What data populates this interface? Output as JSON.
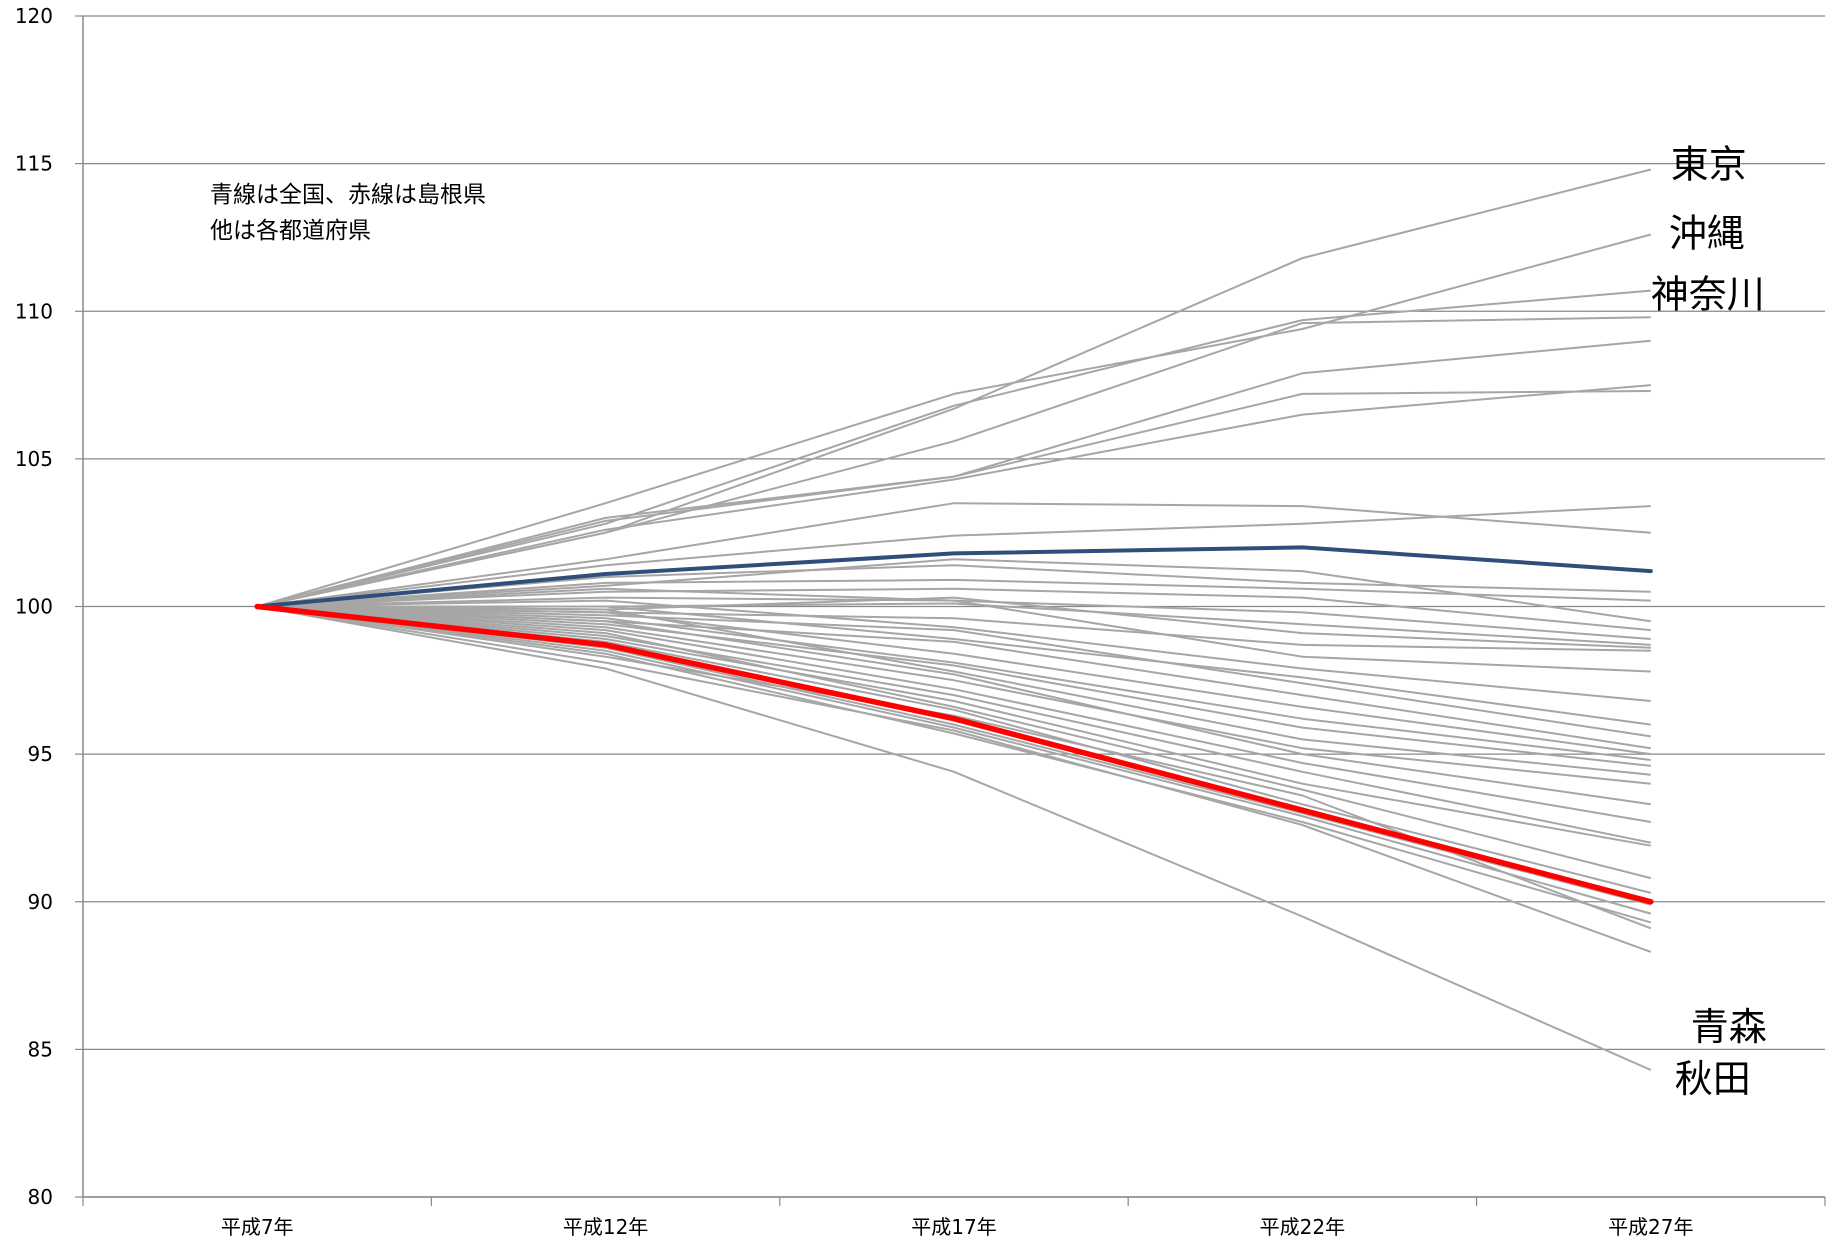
{
  "chart_data": {
    "type": "line",
    "title": "",
    "xlabel": "",
    "ylabel": "",
    "categories": [
      "平成7年",
      "平成12年",
      "平成17年",
      "平成22年",
      "平成27年"
    ],
    "ylim": [
      80,
      120
    ],
    "yticks": [
      80,
      85,
      90,
      95,
      100,
      105,
      110,
      115,
      120
    ],
    "grid": true,
    "notes": [
      "青線は全国、赤線は島根県",
      "他は各都道府県"
    ],
    "colors": {
      "prefecture": "#a6a6a6",
      "national": "#2e4f7a",
      "shimane": "#ff0000",
      "axis": "#888888",
      "grid": "#888888"
    },
    "highlight_series": [
      {
        "role": "national",
        "values": [
          100,
          101.1,
          101.8,
          102.0,
          101.2
        ]
      },
      {
        "role": "shimane",
        "values": [
          100,
          98.7,
          96.2,
          93.1,
          90.0
        ]
      }
    ],
    "labelled_series": [
      {
        "name": "東京",
        "values": [
          100,
          102.5,
          106.7,
          111.8,
          114.8
        ]
      },
      {
        "name": "沖縄",
        "values": [
          100,
          103.5,
          107.2,
          109.4,
          112.6
        ]
      },
      {
        "name": "神奈川",
        "values": [
          100,
          102.8,
          106.8,
          109.7,
          110.7
        ]
      },
      {
        "name": "青森",
        "values": [
          100,
          98.1,
          95.8,
          92.6,
          88.3
        ]
      },
      {
        "name": "秋田",
        "values": [
          100,
          97.9,
          94.4,
          89.5,
          84.3
        ]
      }
    ],
    "series": [
      {
        "values": [
          100,
          102.5,
          105.6,
          109.6,
          109.8
        ]
      },
      {
        "values": [
          100,
          102.9,
          104.4,
          107.9,
          109.0
        ]
      },
      {
        "values": [
          100,
          103.0,
          104.4,
          107.2,
          107.3
        ]
      },
      {
        "values": [
          100,
          102.6,
          104.3,
          106.5,
          107.5
        ]
      },
      {
        "values": [
          100,
          101.6,
          103.5,
          103.4,
          102.5
        ]
      },
      {
        "values": [
          100,
          101.4,
          102.4,
          102.8,
          103.4
        ]
      },
      {
        "values": [
          100,
          101.0,
          101.4,
          100.8,
          100.5
        ]
      },
      {
        "values": [
          100,
          100.8,
          100.9,
          100.6,
          100.2
        ]
      },
      {
        "values": [
          100,
          100.7,
          101.6,
          101.2,
          99.5
        ]
      },
      {
        "values": [
          100,
          100.5,
          100.6,
          100.3,
          99.2
        ]
      },
      {
        "values": [
          100,
          100.3,
          100.2,
          99.8,
          98.9
        ]
      },
      {
        "values": [
          100,
          100.0,
          100.1,
          99.4,
          98.7
        ]
      },
      {
        "values": [
          100,
          99.9,
          100.3,
          99.1,
          98.6
        ]
      },
      {
        "values": [
          100,
          99.8,
          99.6,
          98.7,
          98.5
        ]
      },
      {
        "values": [
          100,
          100.6,
          100.2,
          98.3,
          97.8
        ]
      },
      {
        "values": [
          100,
          100.2,
          99.3,
          97.9,
          96.8
        ]
      },
      {
        "values": [
          100,
          100.0,
          98.9,
          97.6,
          96.0
        ]
      },
      {
        "values": [
          100,
          99.7,
          99.2,
          97.4,
          95.6
        ]
      },
      {
        "values": [
          100,
          99.5,
          98.8,
          97.0,
          95.2
        ]
      },
      {
        "values": [
          100,
          99.8,
          98.4,
          96.6,
          95.0
        ]
      },
      {
        "values": [
          100,
          99.6,
          98.1,
          96.2,
          94.8
        ]
      },
      {
        "values": [
          100,
          99.4,
          98.0,
          95.9,
          94.6
        ]
      },
      {
        "values": [
          100,
          99.9,
          97.8,
          95.5,
          94.3
        ]
      },
      {
        "values": [
          100,
          99.3,
          97.5,
          95.2,
          94.0
        ]
      },
      {
        "values": [
          100,
          99.5,
          97.7,
          95.0,
          93.3
        ]
      },
      {
        "values": [
          100,
          99.2,
          97.2,
          94.7,
          92.7
        ]
      },
      {
        "values": [
          100,
          99.0,
          97.0,
          94.4,
          92.0
        ]
      },
      {
        "values": [
          100,
          98.9,
          96.8,
          94.0,
          91.9
        ]
      },
      {
        "values": [
          100,
          99.1,
          96.6,
          93.8,
          90.8
        ]
      },
      {
        "values": [
          100,
          98.8,
          96.5,
          93.3,
          90.3
        ]
      },
      {
        "values": [
          100,
          98.6,
          96.0,
          93.0,
          89.9
        ]
      },
      {
        "values": [
          100,
          98.5,
          95.9,
          92.9,
          89.6
        ]
      },
      {
        "values": [
          100,
          98.4,
          95.7,
          92.7,
          89.3
        ]
      },
      {
        "values": [
          100,
          98.3,
          96.3,
          93.6,
          89.1
        ]
      }
    ]
  }
}
